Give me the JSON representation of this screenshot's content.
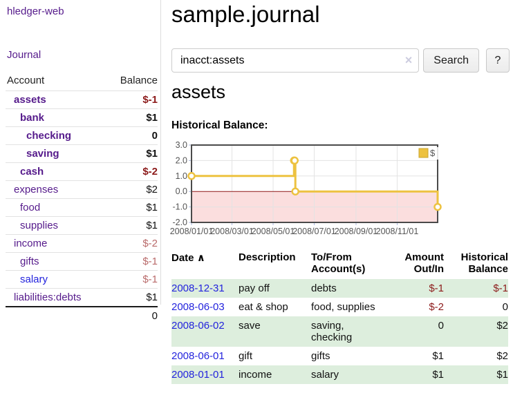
{
  "app": {
    "brand": "hledger-web"
  },
  "theme": {
    "purple": "#551a8b",
    "blue": "#2323dd",
    "neg_strong": "#8c1a1a",
    "neg_soft": "#b96a6a",
    "row_green": "#ddeedd",
    "divider": "#dddddd",
    "button_bg": "#ececec",
    "button_border": "#c8c8c8",
    "input_border": "#cccccc",
    "clear_icon_color": "#ccccdf"
  },
  "sidebar": {
    "journal_label": "Journal",
    "table": {
      "account_header": "Account",
      "balance_header": "Balance",
      "accounts": [
        {
          "name": "assets",
          "indent": 1,
          "selected": true,
          "balance": "$-1",
          "tone": "neg-strong",
          "link_tone": "purple"
        },
        {
          "name": "bank",
          "indent": 2,
          "selected": true,
          "balance": "$1",
          "tone": "",
          "link_tone": "purple"
        },
        {
          "name": "checking",
          "indent": 3,
          "selected": true,
          "balance": "0",
          "tone": "",
          "link_tone": "purple"
        },
        {
          "name": "saving",
          "indent": 3,
          "selected": true,
          "balance": "$1",
          "tone": "",
          "link_tone": "purple"
        },
        {
          "name": "cash",
          "indent": 2,
          "selected": true,
          "balance": "$-2",
          "tone": "neg-strong",
          "link_tone": "purple"
        },
        {
          "name": "expenses",
          "indent": 1,
          "selected": false,
          "balance": "$2",
          "tone": "",
          "link_tone": "purple"
        },
        {
          "name": "food",
          "indent": 2,
          "selected": false,
          "balance": "$1",
          "tone": "",
          "link_tone": "purple"
        },
        {
          "name": "supplies",
          "indent": 2,
          "selected": false,
          "balance": "$1",
          "tone": "",
          "link_tone": "purple"
        },
        {
          "name": "income",
          "indent": 1,
          "selected": false,
          "balance": "$-2",
          "tone": "neg-soft",
          "link_tone": "purple"
        },
        {
          "name": "gifts",
          "indent": 2,
          "selected": false,
          "balance": "$-1",
          "tone": "neg-soft",
          "link_tone": "purple"
        },
        {
          "name": "salary",
          "indent": 2,
          "selected": false,
          "balance": "$-1",
          "tone": "neg-soft",
          "link_tone": "blue"
        },
        {
          "name": "liabilities:debts",
          "indent": 1,
          "selected": false,
          "balance": "$1",
          "tone": "",
          "link_tone": "purple"
        }
      ],
      "total": "0"
    }
  },
  "main": {
    "title": "sample.journal",
    "search": {
      "value": "inacct:assets",
      "clear_icon": "×",
      "button_label": "Search",
      "help_label": "?"
    },
    "account_heading": "assets",
    "chart_label": "Historical Balance:",
    "register": {
      "headers": {
        "date": "Date",
        "sort_indicator": "∧",
        "description": "Description",
        "account": "To/From Account(s)",
        "amount": "Amount Out/In",
        "balance": "Historical Balance"
      },
      "rows": [
        {
          "date": "2008-12-31",
          "description": "pay off",
          "accounts": "debts",
          "amount": "$-1",
          "amount_negative": true,
          "balance": "$-1",
          "balance_negative": true
        },
        {
          "date": "2008-06-03",
          "description": "eat & shop",
          "accounts": "food, supplies",
          "amount": "$-2",
          "amount_negative": true,
          "balance": "0",
          "balance_negative": false
        },
        {
          "date": "2008-06-02",
          "description": "save",
          "accounts": "saving, checking",
          "amount": "0",
          "amount_negative": false,
          "balance": "$2",
          "balance_negative": false
        },
        {
          "date": "2008-06-01",
          "description": "gift",
          "accounts": "gifts",
          "amount": "$1",
          "amount_negative": false,
          "balance": "$2",
          "balance_negative": false
        },
        {
          "date": "2008-01-01",
          "description": "income",
          "accounts": "salary",
          "amount": "$1",
          "amount_negative": false,
          "balance": "$1",
          "balance_negative": false
        }
      ]
    }
  },
  "chart_data": {
    "type": "line",
    "step": true,
    "title": "Historical Balance",
    "series": [
      {
        "name": "$",
        "points": [
          {
            "date": "2008-01-01",
            "day": 0,
            "value": 1
          },
          {
            "date": "2008-06-01",
            "day": 152,
            "value": 2
          },
          {
            "date": "2008-06-02",
            "day": 153,
            "value": 2
          },
          {
            "date": "2008-06-03",
            "day": 154,
            "value": 0
          },
          {
            "date": "2008-12-31",
            "day": 365,
            "value": -1
          }
        ]
      }
    ],
    "legend_label": "$",
    "legend_position": "top-right",
    "x_ticks": [
      {
        "label": "2008/01/01",
        "day": 0
      },
      {
        "label": "2008/03/01",
        "day": 60
      },
      {
        "label": "2008/05/01",
        "day": 121
      },
      {
        "label": "2008/07/01",
        "day": 182
      },
      {
        "label": "2008/09/01",
        "day": 244
      },
      {
        "label": "2008/11/01",
        "day": 305
      }
    ],
    "y_ticks": [
      {
        "label": "3.0",
        "value": 3
      },
      {
        "label": "2.0",
        "value": 2
      },
      {
        "label": "1.0",
        "value": 1
      },
      {
        "label": "0.0",
        "value": 0
      },
      {
        "label": "-1.0",
        "value": -1
      },
      {
        "label": "-2.0",
        "value": -2
      }
    ],
    "ylim": [
      -2,
      3
    ],
    "xlim_days": [
      0,
      365
    ],
    "grid": true,
    "colors": {
      "line": "#edc240",
      "marker_fill": "#ffffff",
      "fill_below_zero": "#fbdede",
      "zero_line": "#8e1616",
      "grid": "#e3e3e3",
      "border": "#4a4a4a",
      "tick": "#aab6e0",
      "label": "#545454",
      "legend_square_border": "#c9a42e"
    }
  }
}
